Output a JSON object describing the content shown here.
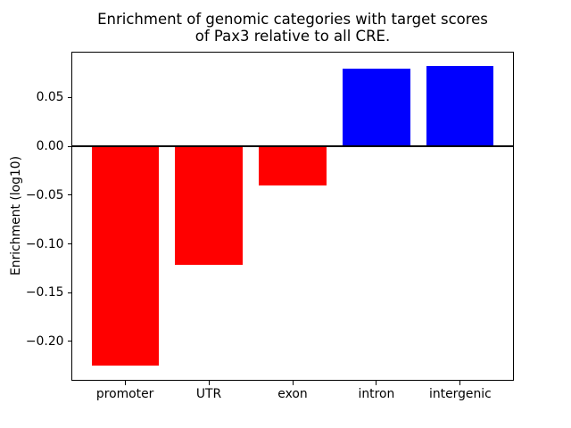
{
  "chart_data": {
    "type": "bar",
    "title_line1": "Enrichment of genomic categories with target scores",
    "title_line2": "of Pax3 relative to all CRE.",
    "ylabel": "Enrichment (log10)",
    "xlabel": "",
    "categories": [
      "promoter",
      "UTR",
      "exon",
      "intron",
      "intergenic"
    ],
    "values": [
      -0.225,
      -0.121,
      -0.04,
      0.08,
      0.082
    ],
    "bar_colors": [
      "#ff0000",
      "#ff0000",
      "#ff0000",
      "#0000ff",
      "#0000ff"
    ],
    "negative_color": "#ff0000",
    "positive_color": "#0000ff",
    "yticks": [
      {
        "value": 0.05,
        "label": "0.05"
      },
      {
        "value": 0.0,
        "label": "0.00"
      },
      {
        "value": -0.05,
        "label": "−0.05"
      },
      {
        "value": -0.1,
        "label": "−0.10"
      },
      {
        "value": -0.15,
        "label": "−0.15"
      },
      {
        "value": -0.2,
        "label": "−0.20"
      }
    ],
    "ylim": [
      -0.2404,
      0.0974
    ],
    "xlim": [
      -0.64,
      4.64
    ],
    "bar_width": 0.8,
    "grid": false,
    "zero_line": true,
    "axis_color": "#000000",
    "background_color": "#ffffff",
    "legend": "none"
  }
}
